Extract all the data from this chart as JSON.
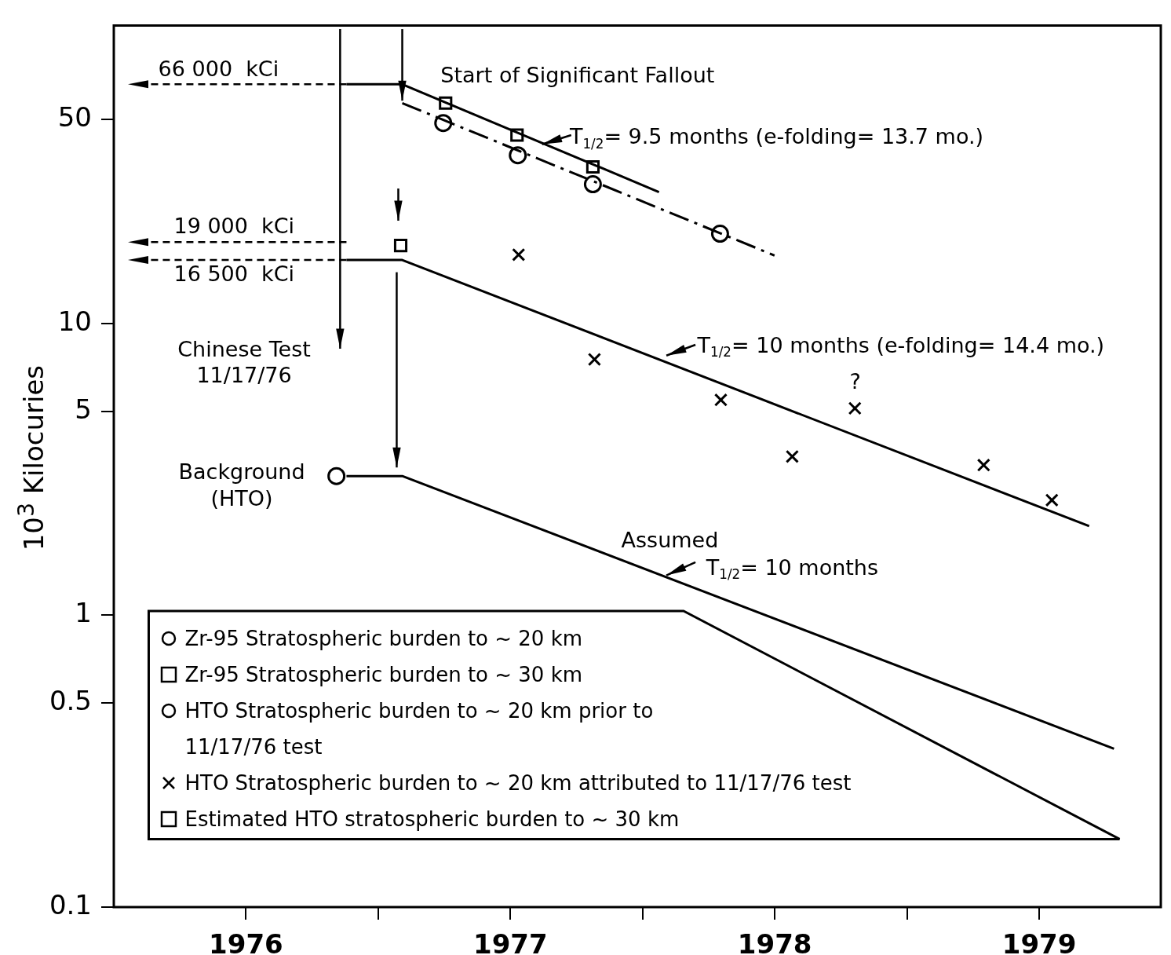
{
  "chart_data": {
    "type": "scatter",
    "ylabel": "10$^{3}$ Kilocuries",
    "log": "y",
    "grid": false,
    "legend": "bottom left",
    "xlim": [
      1976,
      1979.96
    ],
    "ylim": [
      0.1,
      105
    ],
    "xticks": [
      {
        "value": 1976.5,
        "label": "1976"
      },
      {
        "value": 1977,
        "label": null
      },
      {
        "value": 1977.5,
        "label": "1977"
      },
      {
        "value": 1978,
        "label": null
      },
      {
        "value": 1978.5,
        "label": "1978"
      },
      {
        "value": 1979,
        "label": null
      },
      {
        "value": 1979.5,
        "label": "1979"
      }
    ],
    "yticks": [
      0.1,
      0.5,
      1,
      5,
      10,
      50
    ],
    "series": [
      {
        "name": "Zr-95 Stratospheric burden to ~ 20 km",
        "marker": "circle",
        "color": "#000000",
        "x": [
          1977.246,
          1977.528,
          1977.812,
          1978.293
        ],
        "values": [
          48.6,
          37.7,
          30.0,
          20.3
        ]
      },
      {
        "name": "Zr-95 Stratospheric burden to ~ 30 km",
        "marker": "square",
        "color": "#000000",
        "x": [
          1977.255,
          1977.525,
          1977.812
        ],
        "values": [
          56.9,
          44.2,
          34.4
        ]
      },
      {
        "name": "HTO Stratospheric burden to ~ 20 km prior to 11/17/76 test",
        "marker": "circle",
        "color": "#000000",
        "x": [
          1976.842
        ],
        "values": [
          3.0
        ]
      },
      {
        "name": "HTO Stratospheric burden to ~ 20 km attributed to 11/17/76 test",
        "marker": "cross",
        "color": "#000000",
        "x": [
          1977.531,
          1977.818,
          1978.296,
          1978.566,
          1978.803,
          1979.29,
          1979.548
        ],
        "values": [
          17.2,
          7.53,
          5.47,
          3.5,
          5.12,
          3.27,
          2.48
        ]
      },
      {
        "name": "Estimated HTO stratospheric burden to ~ 30 km",
        "marker": "square",
        "color": "#000000",
        "x": [
          1977.085
        ],
        "values": [
          18.5
        ]
      },
      {
        "type": "line",
        "line_style": "solid",
        "color": "#000000",
        "x": [
          1976.88,
          1977.091,
          1978.062
        ],
        "values": [
          66,
          66,
          28.2
        ]
      },
      {
        "type": "line",
        "line_style": "dashed",
        "color": "#000000",
        "x": [
          1977.091,
          1978.499
        ],
        "values": [
          56.9,
          17.1
        ]
      },
      {
        "type": "line",
        "line_style": "solid",
        "color": "#000000",
        "x": [
          1976.88,
          1977.091,
          1979.689
        ],
        "values": [
          16.5,
          16.5,
          2.02
        ]
      },
      {
        "type": "line",
        "line_style": "solid",
        "color": "#000000",
        "x": [
          1976.88,
          1977.091,
          1979.783
        ],
        "values": [
          3.0,
          3.0,
          0.349
        ]
      }
    ],
    "ref_lines": [
      {
        "axis": "y",
        "value": 66,
        "label": "66 000  kCi",
        "line_style": "dashed",
        "color": "#000000"
      },
      {
        "axis": "y",
        "value": 19,
        "label": "19 000  kCi",
        "line_style": "dashed",
        "color": "#000000"
      },
      {
        "axis": "y",
        "value": 16.5,
        "label": "16 500  kCi",
        "line_style": "dashed",
        "color": "#000000"
      }
    ],
    "annotations": [
      "Start of Significant Fallout",
      "T$_{1/2}$= 9.5 months (e-folding= 13.7 mo.)",
      "T$_{1/2}$= 10 months (e-folding= 14.4 mo.)",
      "Chinese Test\n11/17/76",
      "Background\n(HTO)",
      "?",
      "Assumed",
      "T$_{1/2}$= 10 months"
    ]
  }
}
